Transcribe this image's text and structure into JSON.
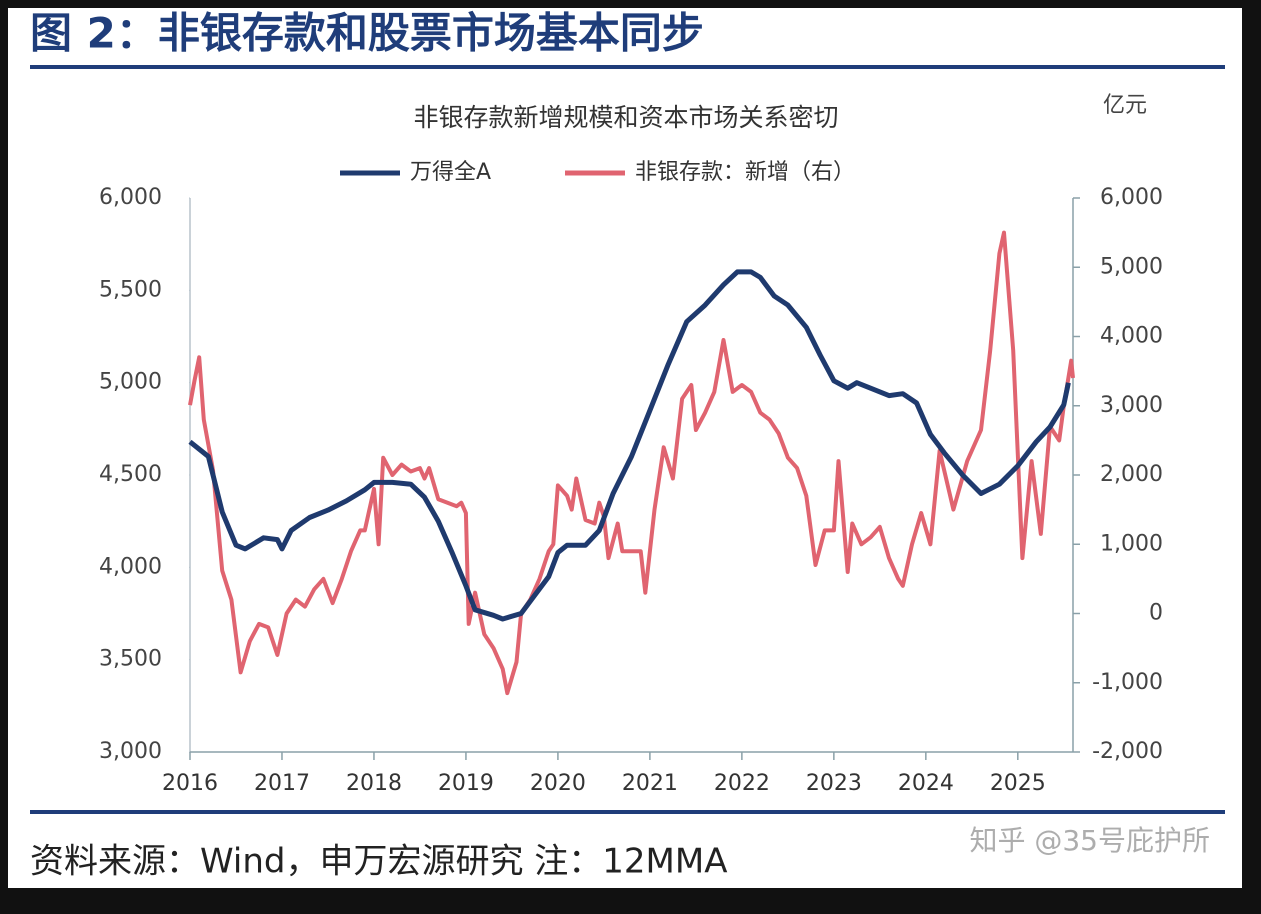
{
  "header": {
    "title": "图 2：非银存款和股票市场基本同步"
  },
  "chart_data": {
    "type": "line",
    "title": "非银存款新增规模和资本市场关系密切",
    "y2label": "亿元",
    "legend": "top",
    "xlim": [
      2016,
      2025.6
    ],
    "xticks": [
      2016,
      2017,
      2018,
      2019,
      2020,
      2021,
      2022,
      2023,
      2024,
      2025
    ],
    "ylim": [
      3000,
      6000
    ],
    "yticks": [
      {
        "value": 3000,
        "label": "3,000"
      },
      {
        "value": 3500,
        "label": "3,500"
      },
      {
        "value": 4000,
        "label": "4,000"
      },
      {
        "value": 4500,
        "label": "4,500"
      },
      {
        "value": 5000,
        "label": "5,000"
      },
      {
        "value": 5500,
        "label": "5,500"
      },
      {
        "value": 6000,
        "label": "6,000"
      }
    ],
    "y2lim": [
      -2000,
      6000
    ],
    "y2ticks": [
      {
        "value": -2000,
        "label": "-2,000"
      },
      {
        "value": -1000,
        "label": "-1,000"
      },
      0,
      {
        "value": 1000,
        "label": "1,000"
      },
      {
        "value": 2000,
        "label": "2,000"
      },
      {
        "value": 3000,
        "label": "3,000"
      },
      {
        "value": 4000,
        "label": "4,000"
      },
      {
        "value": 5000,
        "label": "5,000"
      },
      {
        "value": 6000,
        "label": "6,000"
      }
    ],
    "series": [
      {
        "name": "万得全A",
        "color": "#1f3a6e",
        "axis": "y",
        "x": [
          2016.0,
          2016.2,
          2016.35,
          2016.5,
          2016.6,
          2016.8,
          2016.95,
          2017.0,
          2017.1,
          2017.3,
          2017.5,
          2017.7,
          2017.9,
          2018.0,
          2018.2,
          2018.4,
          2018.55,
          2018.7,
          2018.85,
          2019.0,
          2019.1,
          2019.3,
          2019.4,
          2019.6,
          2019.75,
          2019.9,
          2020.0,
          2020.1,
          2020.3,
          2020.45,
          2020.6,
          2020.8,
          2021.0,
          2021.2,
          2021.4,
          2021.6,
          2021.8,
          2021.95,
          2022.1,
          2022.2,
          2022.35,
          2022.5,
          2022.7,
          2022.85,
          2023.0,
          2023.15,
          2023.25,
          2023.4,
          2023.6,
          2023.75,
          2023.9,
          2024.05,
          2024.2,
          2024.4,
          2024.6,
          2024.8,
          2025.0,
          2025.2,
          2025.35,
          2025.5,
          2025.55
        ],
        "values": [
          4680,
          4600,
          4300,
          4120,
          4100,
          4160,
          4150,
          4100,
          4200,
          4270,
          4310,
          4360,
          4420,
          4460,
          4460,
          4450,
          4380,
          4250,
          4080,
          3900,
          3770,
          3740,
          3720,
          3750,
          3850,
          3950,
          4080,
          4120,
          4120,
          4200,
          4400,
          4600,
          4850,
          5100,
          5330,
          5420,
          5530,
          5600,
          5600,
          5570,
          5470,
          5420,
          5300,
          5150,
          5010,
          4970,
          5000,
          4970,
          4930,
          4940,
          4890,
          4720,
          4620,
          4500,
          4400,
          4450,
          4550,
          4680,
          4760,
          4880,
          5000
        ]
      },
      {
        "name": "非银存款：新增（右）",
        "color": "#e06470",
        "axis": "y2",
        "x": [
          2016.0,
          2016.05,
          2016.1,
          2016.15,
          2016.25,
          2016.35,
          2016.45,
          2016.55,
          2016.65,
          2016.75,
          2016.85,
          2016.95,
          2017.05,
          2017.15,
          2017.25,
          2017.35,
          2017.45,
          2017.55,
          2017.65,
          2017.75,
          2017.85,
          2017.9,
          2017.95,
          2018.0,
          2018.05,
          2018.1,
          2018.2,
          2018.3,
          2018.4,
          2018.5,
          2018.55,
          2018.6,
          2018.7,
          2018.8,
          2018.9,
          2018.95,
          2019.0,
          2019.03,
          2019.1,
          2019.2,
          2019.3,
          2019.4,
          2019.45,
          2019.55,
          2019.6,
          2019.7,
          2019.8,
          2019.9,
          2019.95,
          2020.0,
          2020.1,
          2020.15,
          2020.2,
          2020.3,
          2020.4,
          2020.45,
          2020.5,
          2020.55,
          2020.65,
          2020.7,
          2020.8,
          2020.9,
          2020.95,
          2021.05,
          2021.15,
          2021.25,
          2021.35,
          2021.45,
          2021.5,
          2021.6,
          2021.7,
          2021.8,
          2021.9,
          2022.0,
          2022.1,
          2022.2,
          2022.3,
          2022.4,
          2022.5,
          2022.6,
          2022.7,
          2022.8,
          2022.9,
          2023.0,
          2023.05,
          2023.15,
          2023.2,
          2023.3,
          2023.4,
          2023.5,
          2023.6,
          2023.7,
          2023.75,
          2023.85,
          2023.95,
          2024.05,
          2024.15,
          2024.3,
          2024.45,
          2024.6,
          2024.7,
          2024.8,
          2024.85,
          2024.95,
          2025.05,
          2025.15,
          2025.25,
          2025.35,
          2025.45,
          2025.5,
          2025.58,
          2025.6
        ],
        "values": [
          3010,
          3370,
          3700,
          2800,
          2070,
          620,
          200,
          -850,
          -400,
          -150,
          -200,
          -600,
          0,
          200,
          100,
          350,
          500,
          150,
          500,
          900,
          1200,
          1200,
          1500,
          1800,
          1000,
          2250,
          2000,
          2150,
          2050,
          2100,
          1950,
          2100,
          1650,
          1600,
          1550,
          1600,
          1450,
          -150,
          300,
          -300,
          -500,
          -800,
          -1150,
          -700,
          0,
          200,
          500,
          900,
          1000,
          1850,
          1700,
          1500,
          1950,
          1350,
          1300,
          1600,
          1400,
          800,
          1300,
          900,
          900,
          900,
          300,
          1500,
          2400,
          1950,
          3100,
          3300,
          2650,
          2900,
          3200,
          3950,
          3200,
          3300,
          3200,
          2900,
          2800,
          2600,
          2250,
          2100,
          1700,
          700,
          1200,
          1200,
          2200,
          600,
          1300,
          1000,
          1100,
          1250,
          800,
          500,
          400,
          1000,
          1450,
          1000,
          2350,
          1500,
          2200,
          2650,
          3800,
          5200,
          5500,
          3800,
          800,
          2200,
          1150,
          2700,
          2500,
          3000,
          3650,
          3400
        ]
      }
    ]
  },
  "footer": {
    "source": "资料来源：Wind，申万宏源研究 注：12MMA",
    "watermark": "知乎 @35号庇护所"
  }
}
